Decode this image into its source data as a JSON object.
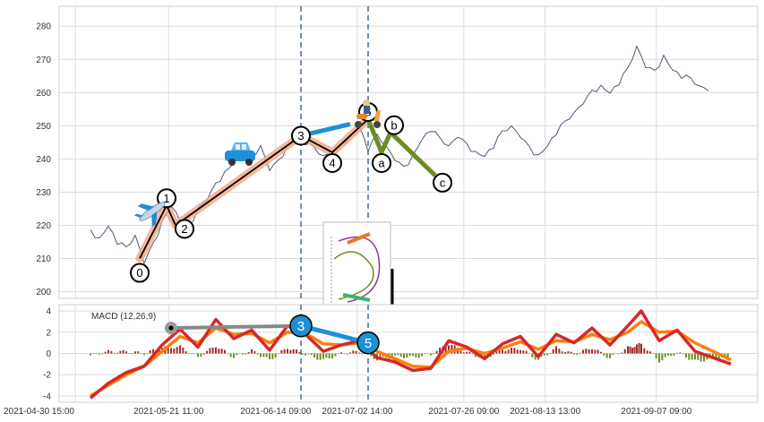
{
  "chart_data": [
    {
      "type": "line",
      "panel": "price",
      "title": "",
      "xlabel": "",
      "ylabel": "",
      "ylim": [
        198,
        286
      ],
      "yticks": [
        200,
        210,
        220,
        230,
        240,
        250,
        260,
        270,
        280
      ],
      "grid": true,
      "series": [
        {
          "points": [
            [
              "2021-05-04",
              218
            ],
            [
              "2021-05-06",
              216
            ],
            [
              "2021-05-08",
              220
            ],
            [
              "2021-05-10",
              215
            ],
            [
              "2021-05-12",
              213
            ],
            [
              "2021-05-14",
              217
            ],
            [
              "2021-05-16",
              209
            ],
            [
              "2021-05-18",
              214
            ],
            [
              "2021-05-20",
              221
            ],
            [
              "2021-05-22",
              226
            ],
            [
              "2021-05-24",
              222
            ],
            [
              "2021-05-26",
              219
            ],
            [
              "2021-05-28",
              225
            ],
            [
              "2021-05-30",
              228
            ],
            [
              "2021-06-01",
              232
            ],
            [
              "2021-06-03",
              236
            ],
            [
              "2021-06-05",
              239
            ],
            [
              "2021-06-07",
              242
            ],
            [
              "2021-06-09",
              240
            ],
            [
              "2021-06-11",
              244
            ],
            [
              "2021-06-13",
              237
            ],
            [
              "2021-06-15",
              239
            ],
            [
              "2021-06-17",
              244
            ],
            [
              "2021-06-19",
              247
            ],
            [
              "2021-06-21",
              245
            ],
            [
              "2021-06-23",
              243
            ],
            [
              "2021-06-25",
              241
            ],
            [
              "2021-06-27",
              242
            ],
            [
              "2021-06-29",
              244
            ],
            [
              "2021-07-01",
              247
            ],
            [
              "2021-07-03",
              250
            ],
            [
              "2021-07-05",
              243
            ],
            [
              "2021-07-07",
              247
            ],
            [
              "2021-07-09",
              244
            ],
            [
              "2021-07-11",
              240
            ],
            [
              "2021-07-13",
              237
            ],
            [
              "2021-07-15",
              241
            ],
            [
              "2021-07-17",
              246
            ],
            [
              "2021-07-19",
              249
            ],
            [
              "2021-07-21",
              246
            ],
            [
              "2021-07-23",
              244
            ],
            [
              "2021-07-25",
              247
            ],
            [
              "2021-07-27",
              244
            ],
            [
              "2021-07-29",
              242
            ],
            [
              "2021-07-31",
              241
            ],
            [
              "2021-08-02",
              244
            ],
            [
              "2021-08-04",
              248
            ],
            [
              "2021-08-06",
              250
            ],
            [
              "2021-08-08",
              247
            ],
            [
              "2021-08-10",
              243
            ],
            [
              "2021-08-12",
              241
            ],
            [
              "2021-08-14",
              244
            ],
            [
              "2021-08-16",
              248
            ],
            [
              "2021-08-18",
              251
            ],
            [
              "2021-08-20",
              254
            ],
            [
              "2021-08-22",
              257
            ],
            [
              "2021-08-24",
              260
            ],
            [
              "2021-08-26",
              262
            ],
            [
              "2021-08-28",
              260
            ],
            [
              "2021-08-30",
              263
            ],
            [
              "2021-09-01",
              267
            ],
            [
              "2021-09-03",
              274
            ],
            [
              "2021-09-05",
              268
            ],
            [
              "2021-09-07",
              266
            ],
            [
              "2021-09-09",
              271
            ],
            [
              "2021-09-11",
              267
            ],
            [
              "2021-09-13",
              265
            ],
            [
              "2021-09-15",
              264
            ],
            [
              "2021-09-17",
              262
            ],
            [
              "2021-09-19",
              261
            ]
          ]
        }
      ],
      "vlines": [
        "2021-06-20",
        "2021-07-05"
      ],
      "waves": {
        "impulse": [
          {
            "label": "0",
            "x": "2021-05-15",
            "y": 210
          },
          {
            "label": "1",
            "x": "2021-05-21",
            "y": 226
          },
          {
            "label": "2",
            "x": "2021-05-23",
            "y": 220
          },
          {
            "label": "3",
            "x": "2021-06-20",
            "y": 247
          },
          {
            "label": "4",
            "x": "2021-06-27",
            "y": 242
          },
          {
            "label": "5",
            "x": "2021-07-05",
            "y": 252
          }
        ],
        "corrective": [
          {
            "label": "a",
            "x": "2021-07-08",
            "y": 242
          },
          {
            "label": "b",
            "x": "2021-07-10",
            "y": 248
          },
          {
            "label": "c",
            "x": "2021-07-20",
            "y": 235
          }
        ]
      },
      "icons": [
        "airplane-icon",
        "car-icon",
        "scooter-icon",
        "roller-coaster-icon"
      ],
      "colors": {
        "price": "#4a5a78",
        "impulse": "#000000",
        "impulse_glow": "#f4a582",
        "corrective": "#6b8e23",
        "projection": "#1f8fd6",
        "vline": "#4a6a8a"
      }
    },
    {
      "type": "line",
      "panel": "macd",
      "label": "MACD (12,26,9)",
      "ylim": [
        -4.6,
        4.6
      ],
      "yticks": [
        -4,
        -2,
        0,
        2,
        4
      ],
      "xticks": [
        "2021-04-30 15:00",
        "2021-05-21 11:00",
        "2021-06-14 09:00",
        "2021-07-02 14:00",
        "2021-07-26 09:00",
        "2021-08-13 13:00",
        "2021-09-07 09:00"
      ],
      "xrange": [
        "2021-04-27",
        "2021-09-30"
      ],
      "macd": [
        [
          "2021-05-04",
          -4.2
        ],
        [
          "2021-05-08",
          -2.8
        ],
        [
          "2021-05-12",
          -1.8
        ],
        [
          "2021-05-16",
          -1.2
        ],
        [
          "2021-05-20",
          0.8
        ],
        [
          "2021-05-24",
          2.3
        ],
        [
          "2021-05-28",
          0.6
        ],
        [
          "2021-06-01",
          3.2
        ],
        [
          "2021-06-05",
          1.4
        ],
        [
          "2021-06-09",
          2.2
        ],
        [
          "2021-06-13",
          0.3
        ],
        [
          "2021-06-17",
          2.6
        ],
        [
          "2021-06-21",
          1.8
        ],
        [
          "2021-06-25",
          0.2
        ],
        [
          "2021-06-29",
          0.8
        ],
        [
          "2021-07-03",
          1.2
        ],
        [
          "2021-07-07",
          -0.4
        ],
        [
          "2021-07-11",
          -0.8
        ],
        [
          "2021-07-15",
          -1.6
        ],
        [
          "2021-07-19",
          -1.4
        ],
        [
          "2021-07-23",
          1.2
        ],
        [
          "2021-07-27",
          0.6
        ],
        [
          "2021-07-31",
          -0.5
        ],
        [
          "2021-08-04",
          0.9
        ],
        [
          "2021-08-08",
          1.6
        ],
        [
          "2021-08-12",
          -0.3
        ],
        [
          "2021-08-16",
          1.8
        ],
        [
          "2021-08-20",
          1.0
        ],
        [
          "2021-08-24",
          2.4
        ],
        [
          "2021-08-28",
          0.8
        ],
        [
          "2021-09-01",
          2.6
        ],
        [
          "2021-09-04",
          4.0
        ],
        [
          "2021-09-08",
          1.2
        ],
        [
          "2021-09-12",
          2.2
        ],
        [
          "2021-09-16",
          0.2
        ],
        [
          "2021-09-20",
          -0.4
        ],
        [
          "2021-09-24",
          -1.0
        ]
      ],
      "signal": [
        [
          "2021-05-04",
          -4.0
        ],
        [
          "2021-05-08",
          -3.0
        ],
        [
          "2021-05-12",
          -2.0
        ],
        [
          "2021-05-16",
          -1.2
        ],
        [
          "2021-05-20",
          0.2
        ],
        [
          "2021-05-24",
          1.6
        ],
        [
          "2021-05-28",
          1.0
        ],
        [
          "2021-06-01",
          2.4
        ],
        [
          "2021-06-05",
          1.8
        ],
        [
          "2021-06-09",
          1.9
        ],
        [
          "2021-06-13",
          1.0
        ],
        [
          "2021-06-17",
          2.0
        ],
        [
          "2021-06-21",
          1.9
        ],
        [
          "2021-06-25",
          0.9
        ],
        [
          "2021-06-29",
          0.8
        ],
        [
          "2021-07-03",
          1.0
        ],
        [
          "2021-07-07",
          0.2
        ],
        [
          "2021-07-11",
          -0.5
        ],
        [
          "2021-07-15",
          -1.2
        ],
        [
          "2021-07-19",
          -1.3
        ],
        [
          "2021-07-23",
          0.2
        ],
        [
          "2021-07-27",
          0.5
        ],
        [
          "2021-07-31",
          0.0
        ],
        [
          "2021-08-04",
          0.5
        ],
        [
          "2021-08-08",
          1.1
        ],
        [
          "2021-08-12",
          0.4
        ],
        [
          "2021-08-16",
          1.2
        ],
        [
          "2021-08-20",
          1.1
        ],
        [
          "2021-08-24",
          1.8
        ],
        [
          "2021-08-28",
          1.3
        ],
        [
          "2021-09-01",
          2.0
        ],
        [
          "2021-09-04",
          3.0
        ],
        [
          "2021-09-08",
          2.0
        ],
        [
          "2021-09-12",
          2.1
        ],
        [
          "2021-09-16",
          1.0
        ],
        [
          "2021-09-20",
          0.2
        ],
        [
          "2021-09-24",
          -0.6
        ]
      ],
      "markers": [
        {
          "label": "",
          "x": "2021-05-22",
          "y": 2.4
        },
        {
          "label": "3",
          "x": "2021-06-20",
          "y": 2.6
        },
        {
          "label": "5",
          "x": "2021-07-05",
          "y": 1.0
        }
      ],
      "colors": {
        "macd": "#d62728",
        "signal": "#ff7f0e",
        "hist_pos": "#a52a2a",
        "hist_neg": "#6b8e23"
      }
    }
  ]
}
